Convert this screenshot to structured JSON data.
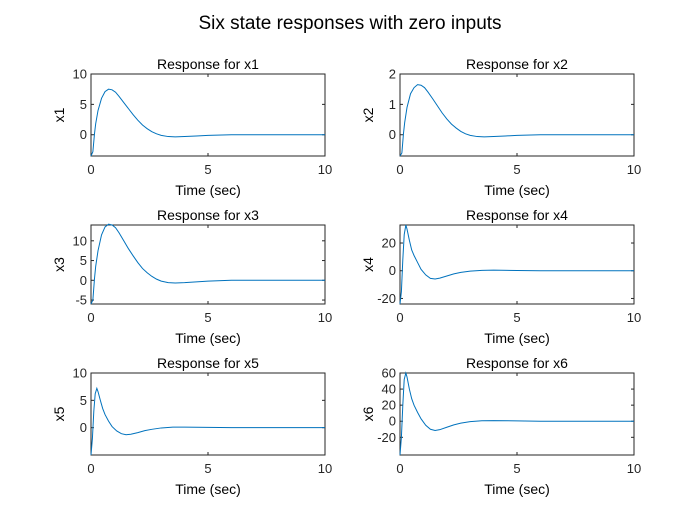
{
  "figure": {
    "title": "Six state responses with zero inputs",
    "line_color": "#0072BD"
  },
  "chart_data": [
    {
      "type": "line",
      "title": "Response for x1",
      "xlabel": "Time (sec)",
      "ylabel": "x1",
      "xlim": [
        0,
        10
      ],
      "ylim": [
        -3.5,
        10
      ],
      "xticks": [
        0,
        5,
        10
      ],
      "yticks": [
        0,
        5,
        10
      ],
      "x": [
        0,
        0.08,
        0.15,
        0.2,
        0.3,
        0.45,
        0.6,
        0.75,
        0.9,
        1.05,
        1.2,
        1.4,
        1.6,
        1.8,
        2.0,
        2.2,
        2.4,
        2.6,
        2.8,
        3.0,
        3.3,
        3.6,
        4.0,
        4.5,
        5.0,
        6.0,
        7.0,
        8.0,
        10.0
      ],
      "values": [
        -3.5,
        -2.8,
        0.2,
        1.8,
        4.0,
        6.0,
        7.1,
        7.5,
        7.4,
        7.0,
        6.3,
        5.3,
        4.3,
        3.3,
        2.4,
        1.6,
        1.0,
        0.5,
        0.15,
        -0.1,
        -0.3,
        -0.35,
        -0.3,
        -0.2,
        -0.1,
        0.0,
        0.0,
        0.0,
        0.0
      ]
    },
    {
      "type": "line",
      "title": "Response for x2",
      "xlabel": "Time (sec)",
      "ylabel": "x2",
      "xlim": [
        0,
        10
      ],
      "ylim": [
        -0.7,
        2
      ],
      "xticks": [
        0,
        5,
        10
      ],
      "yticks": [
        0,
        1,
        2
      ],
      "x": [
        0,
        0.08,
        0.15,
        0.2,
        0.3,
        0.45,
        0.6,
        0.75,
        0.9,
        1.05,
        1.2,
        1.4,
        1.6,
        1.8,
        2.0,
        2.2,
        2.4,
        2.6,
        2.8,
        3.0,
        3.3,
        3.6,
        4.0,
        4.5,
        5.0,
        6.0,
        7.0,
        8.0,
        10.0
      ],
      "values": [
        -0.7,
        -0.6,
        0.05,
        0.4,
        0.9,
        1.35,
        1.55,
        1.65,
        1.63,
        1.55,
        1.4,
        1.18,
        0.95,
        0.72,
        0.52,
        0.35,
        0.22,
        0.11,
        0.03,
        -0.02,
        -0.06,
        -0.07,
        -0.06,
        -0.04,
        -0.02,
        0.0,
        0.0,
        0.0,
        0.0
      ]
    },
    {
      "type": "line",
      "title": "Response for x3",
      "xlabel": "Time (sec)",
      "ylabel": "x3",
      "xlim": [
        0,
        10
      ],
      "ylim": [
        -6,
        14
      ],
      "xticks": [
        0,
        5,
        10
      ],
      "yticks": [
        -5,
        0,
        5,
        10
      ],
      "x": [
        0,
        0.08,
        0.15,
        0.2,
        0.3,
        0.45,
        0.6,
        0.75,
        0.9,
        1.05,
        1.2,
        1.4,
        1.6,
        1.8,
        2.0,
        2.2,
        2.4,
        2.6,
        2.8,
        3.0,
        3.3,
        3.6,
        4.0,
        4.5,
        5.0,
        6.0,
        7.0,
        8.0,
        10.0
      ],
      "values": [
        -6.0,
        -5.0,
        0.5,
        3.5,
        7.5,
        11.5,
        13.5,
        14.2,
        14.0,
        13.3,
        12.0,
        10.0,
        8.0,
        6.2,
        4.5,
        3.0,
        1.9,
        1.0,
        0.3,
        -0.2,
        -0.6,
        -0.7,
        -0.6,
        -0.4,
        -0.2,
        0.0,
        0.0,
        0.0,
        0.0
      ]
    },
    {
      "type": "line",
      "title": "Response for x4",
      "xlabel": "Time (sec)",
      "ylabel": "x4",
      "xlim": [
        0,
        10
      ],
      "ylim": [
        -24,
        33
      ],
      "xticks": [
        0,
        5,
        10
      ],
      "yticks": [
        -20,
        0,
        20
      ],
      "x": [
        0,
        0.06,
        0.12,
        0.18,
        0.25,
        0.3,
        0.4,
        0.5,
        0.6,
        0.75,
        0.9,
        1.1,
        1.3,
        1.5,
        1.7,
        2.0,
        2.3,
        2.6,
        3.0,
        3.5,
        4.0,
        5.0,
        6.0,
        8.0,
        10.0
      ],
      "values": [
        -24,
        -15,
        8,
        26,
        33,
        30,
        22,
        15,
        11,
        6,
        1,
        -3,
        -5.5,
        -6,
        -5.3,
        -3.8,
        -2.3,
        -1.2,
        -0.3,
        0.3,
        0.4,
        0.2,
        0.0,
        0.0,
        0.0
      ]
    },
    {
      "type": "line",
      "title": "Response for x5",
      "xlabel": "Time (sec)",
      "ylabel": "x5",
      "xlim": [
        0,
        10
      ],
      "ylim": [
        -5,
        10
      ],
      "xticks": [
        0,
        5,
        10
      ],
      "yticks": [
        0,
        5,
        10
      ],
      "x": [
        0,
        0.06,
        0.12,
        0.18,
        0.25,
        0.3,
        0.4,
        0.5,
        0.6,
        0.75,
        0.9,
        1.1,
        1.3,
        1.5,
        1.7,
        2.0,
        2.3,
        2.6,
        3.0,
        3.5,
        4.0,
        5.0,
        6.0,
        8.0,
        10.0
      ],
      "values": [
        -5.0,
        -2.0,
        3.0,
        6.2,
        7.2,
        6.6,
        5.0,
        3.5,
        2.4,
        1.2,
        0.2,
        -0.6,
        -1.1,
        -1.3,
        -1.2,
        -0.9,
        -0.55,
        -0.3,
        -0.05,
        0.1,
        0.1,
        0.05,
        0.0,
        0.0,
        0.0
      ]
    },
    {
      "type": "line",
      "title": "Response for x6",
      "xlabel": "Time (sec)",
      "ylabel": "x6",
      "xlim": [
        0,
        10
      ],
      "ylim": [
        -42,
        60
      ],
      "xticks": [
        0,
        5,
        10
      ],
      "yticks": [
        -20,
        0,
        20,
        40,
        60
      ],
      "x": [
        0,
        0.06,
        0.12,
        0.18,
        0.25,
        0.3,
        0.4,
        0.5,
        0.6,
        0.75,
        0.9,
        1.1,
        1.3,
        1.5,
        1.7,
        2.0,
        2.3,
        2.6,
        3.0,
        3.5,
        4.0,
        5.0,
        6.0,
        8.0,
        10.0
      ],
      "values": [
        -42,
        -20,
        20,
        52,
        60,
        55,
        40,
        28,
        20,
        11,
        3,
        -5,
        -10,
        -11.5,
        -10.5,
        -7.5,
        -4.5,
        -2.3,
        -0.5,
        0.6,
        0.8,
        0.4,
        0.0,
        0.0,
        0.0
      ]
    }
  ]
}
